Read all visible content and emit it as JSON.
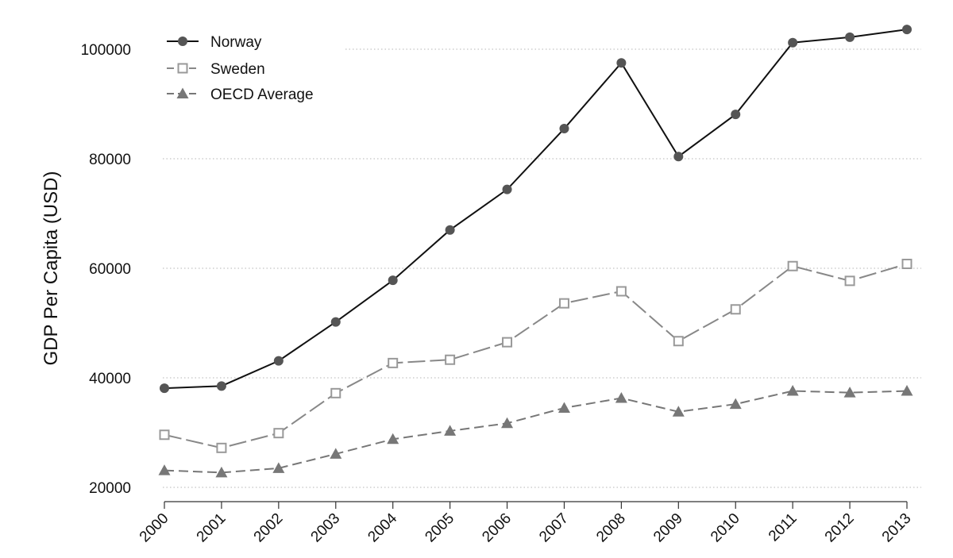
{
  "chart_data": {
    "type": "line",
    "title": "",
    "xlabel": "",
    "ylabel": "GDP Per Capita (USD)",
    "x": [
      "2000",
      "2001",
      "2002",
      "2003",
      "2004",
      "2005",
      "2006",
      "2007",
      "2008",
      "2009",
      "2010",
      "2011",
      "2012",
      "2013"
    ],
    "yticks": [
      "20000",
      "40000",
      "60000",
      "80000",
      "100000"
    ],
    "ylim": [
      20000,
      105000
    ],
    "grid": "horizontal dotted",
    "legend_position": "top-left",
    "series": [
      {
        "name": "Norway",
        "values": [
          38100,
          38500,
          43100,
          50200,
          57800,
          67000,
          74400,
          85500,
          97500,
          80400,
          88100,
          101200,
          102200,
          103600
        ],
        "color": "#111111",
        "line_style": "solid",
        "marker": "filled-circle",
        "marker_color": "#555555"
      },
      {
        "name": "Sweden",
        "values": [
          29600,
          27200,
          29900,
          37200,
          42700,
          43300,
          46500,
          53600,
          55800,
          46700,
          52500,
          60400,
          57700,
          60800
        ],
        "color": "#888888",
        "line_style": "long-dash",
        "marker": "hollow-square",
        "marker_color": "#999999"
      },
      {
        "name": "OECD Average",
        "values": [
          23100,
          22700,
          23500,
          26100,
          28800,
          30300,
          31700,
          34500,
          36300,
          33800,
          35200,
          37600,
          37300,
          37600
        ],
        "color": "#777777",
        "line_style": "dash",
        "marker": "filled-triangle",
        "marker_color": "#777777"
      }
    ]
  }
}
